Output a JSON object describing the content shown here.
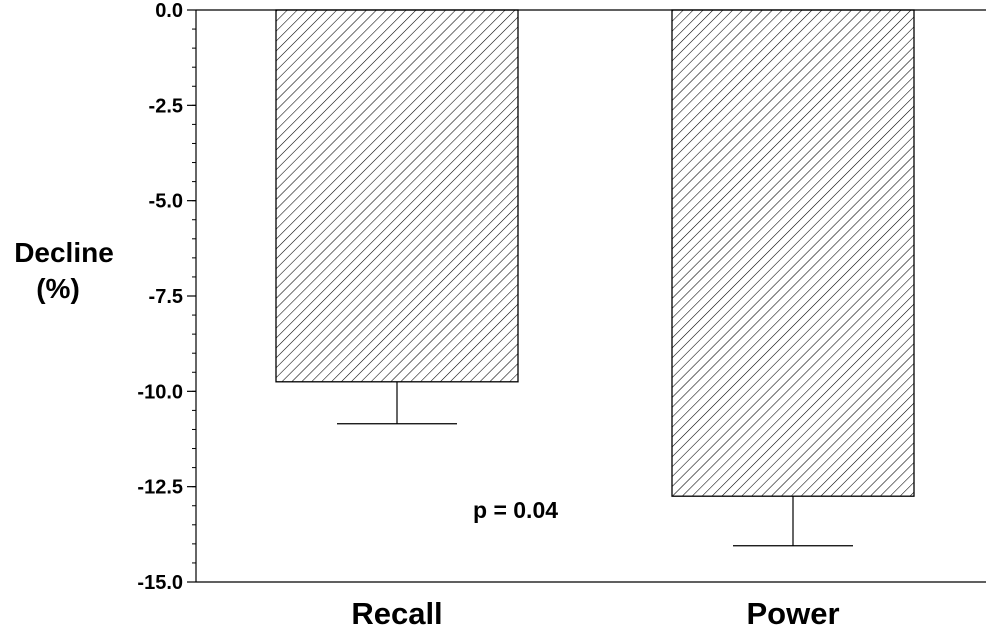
{
  "chart_data": {
    "type": "bar",
    "categories": [
      "Recall",
      "Power"
    ],
    "values": [
      -9.75,
      -12.75
    ],
    "error_lower": [
      1.1,
      1.3
    ],
    "ylabel_lines": [
      "Decline",
      "(%)"
    ],
    "ylim": [
      -15.0,
      0.0
    ],
    "yticks": [
      "0.0",
      "-2.5",
      "-5.0",
      "-7.5",
      "-10.0",
      "-12.5",
      "-15.0"
    ],
    "ytick_values": [
      0.0,
      -2.5,
      -5.0,
      -7.5,
      -10.0,
      -12.5,
      -15.0
    ],
    "minor_tick_step": 0.5,
    "annotation": "p = 0.04",
    "annotation_position": [
      -13.1
    ],
    "bar_fill": "hatched",
    "bar_color": "#000000",
    "grid": false,
    "legend": "none"
  }
}
